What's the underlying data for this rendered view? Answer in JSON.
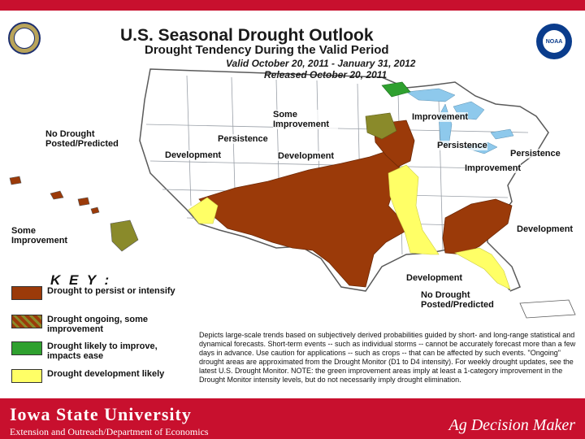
{
  "header": {
    "title": "U.S. Seasonal Drought Outlook",
    "subtitle": "Drought Tendency During the Valid Period",
    "valid": "Valid October 20, 2011 - January 31, 2012",
    "released": "Released October 20, 2011",
    "noaa_logo_text": "NOAA"
  },
  "map_labels": {
    "no_drought_west": "No Drought Posted/Predicted",
    "some_improvement_north": "Some Improvement",
    "persistence_north": "Persistence",
    "development_west": "Development",
    "development_central": "Development",
    "improvement_ne": "Improvement",
    "persistence_great_lakes": "Persistence",
    "persistence_ne": "Persistence",
    "improvement_east": "Improvement",
    "some_improvement_hawaii": "Some Improvement",
    "development_se": "Development",
    "development_south": "Development",
    "no_drought_pr": "No Drought Posted/Predicted"
  },
  "key": {
    "title": "K E Y :",
    "items": [
      {
        "label": "Drought to persist or intensify",
        "color": "#9b3a09"
      },
      {
        "label": "Drought ongoing, some improvement",
        "color": "#8a8a2a"
      },
      {
        "label": "Drought likely to improve, impacts ease",
        "color": "#2fa02f"
      },
      {
        "label": "Drought development likely",
        "color": "#ffff66"
      }
    ]
  },
  "disclaimer": "Depicts large-scale trends based on subjectively derived probabilities guided by short- and long-range statistical and dynamical forecasts. Short-term events -- such as individual storms -- cannot be accurately forecast more than a few days in advance. Use caution for applications -- such as crops -- that can be affected by such events. \"Ongoing\" drought areas are approximated from the Drought Monitor (D1 to D4 intensity). For weekly drought updates, see the latest U.S. Drought Monitor. NOTE: the green improvement areas imply at least a 1-category improvement in the Drought Monitor intensity levels, but do not necessarily imply drought elimination.",
  "footer": {
    "university": "Iowa State University",
    "extension": "Extension and Outreach/Department of Economics",
    "brand": "Ag Decision Maker"
  },
  "colors": {
    "persist": "#9b3a09",
    "improve_some": "#8a8a2a",
    "improve": "#2fa02f",
    "develop": "#ffff66",
    "footer_red": "#c8102e",
    "water": "#8ec9ec"
  }
}
